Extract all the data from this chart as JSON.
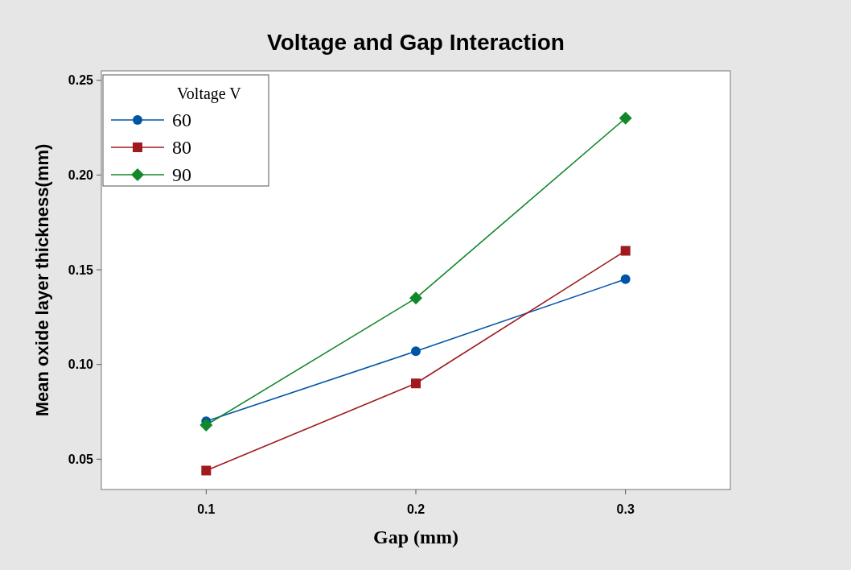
{
  "chart_data": {
    "type": "line",
    "title": "Voltage and Gap Interaction",
    "xlabel": "Gap (mm)",
    "ylabel": "Mean oxide layer thickness(mm)",
    "legend_title": "Voltage V",
    "x": [
      0.1,
      0.2,
      0.3
    ],
    "xlim": [
      0.05,
      0.35
    ],
    "xticks": [
      0.1,
      0.2,
      0.3
    ],
    "ylim": [
      0.034,
      0.255
    ],
    "yticks": [
      {
        "value": 0.05,
        "label": "0.05"
      },
      {
        "value": 0.1,
        "label": "0.10"
      },
      {
        "value": 0.15,
        "label": "0.15"
      },
      {
        "value": 0.2,
        "label": "0.20"
      },
      {
        "value": 0.25,
        "label": "0.25"
      }
    ],
    "legend": "top left",
    "grid": false,
    "line_style": "solid",
    "series": [
      {
        "name": "60",
        "color": "#0054a6",
        "marker": "circle",
        "values": [
          0.07,
          0.107,
          0.145
        ]
      },
      {
        "name": "80",
        "color": "#a0191d",
        "marker": "square",
        "values": [
          0.044,
          0.09,
          0.16
        ]
      },
      {
        "name": "90",
        "color": "#12882a",
        "marker": "diamond",
        "values": [
          0.068,
          0.135,
          0.23
        ]
      }
    ]
  }
}
